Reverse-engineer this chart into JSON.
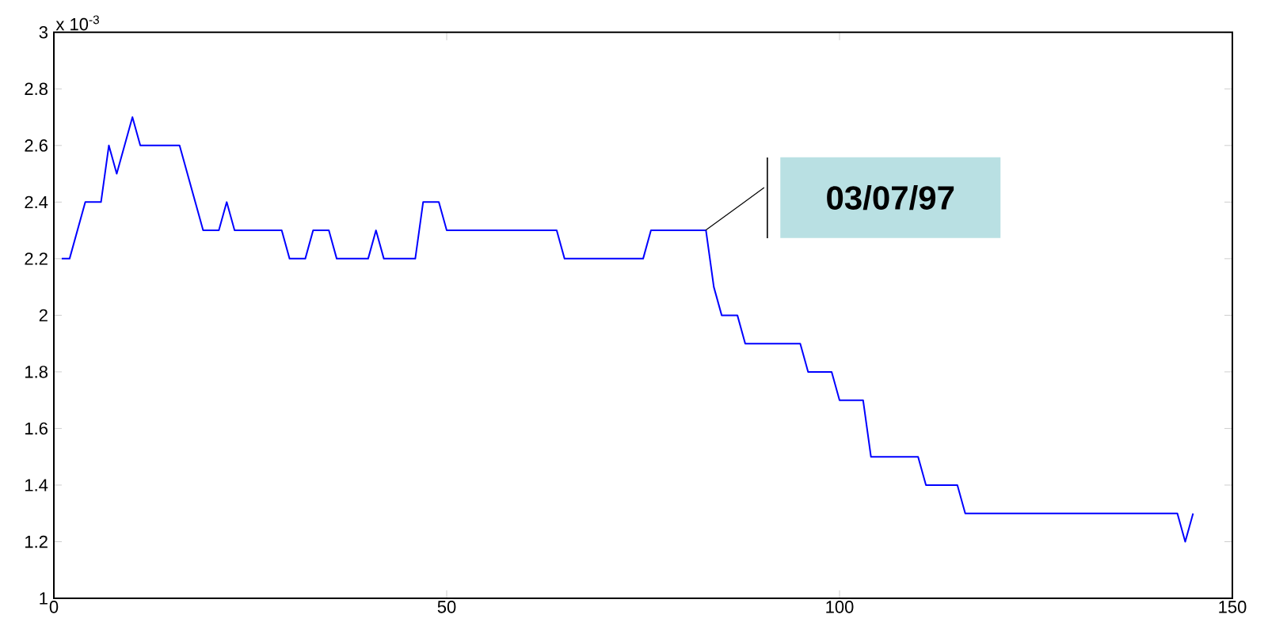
{
  "chart_data": {
    "type": "line",
    "x": [
      1,
      2,
      4,
      6,
      7,
      8,
      10,
      11,
      16,
      19,
      21,
      22,
      23,
      29,
      30,
      32,
      33,
      35,
      36,
      40,
      41,
      42,
      46,
      47,
      49,
      50,
      64,
      65,
      75,
      76,
      83,
      84,
      85,
      87,
      88,
      95,
      96,
      99,
      100,
      103,
      104,
      110,
      111,
      115,
      116,
      143,
      144,
      145
    ],
    "series": [
      {
        "color": "#0000ff",
        "values": [
          2.2,
          2.2,
          2.4,
          2.4,
          2.6,
          2.5,
          2.7,
          2.6,
          2.6,
          2.3,
          2.3,
          2.4,
          2.3,
          2.3,
          2.2,
          2.2,
          2.3,
          2.3,
          2.2,
          2.2,
          2.3,
          2.2,
          2.2,
          2.4,
          2.4,
          2.3,
          2.3,
          2.2,
          2.2,
          2.3,
          2.3,
          2.1,
          2.0,
          2.0,
          1.9,
          1.9,
          1.8,
          1.8,
          1.7,
          1.7,
          1.5,
          1.5,
          1.4,
          1.4,
          1.3,
          1.3,
          1.2,
          1.3
        ]
      }
    ],
    "xlim": [
      0,
      150
    ],
    "xticks": [
      0,
      50,
      100,
      150
    ],
    "ylim": [
      1,
      3
    ],
    "yticks": [
      1,
      1.2,
      1.4,
      1.6,
      1.8,
      2,
      2.2,
      2.4,
      2.6,
      2.8,
      3
    ],
    "annotations": [
      "x 10$^{-3}$",
      "03/07/97"
    ],
    "marker": "none",
    "line_style": "solid",
    "grid": false
  }
}
